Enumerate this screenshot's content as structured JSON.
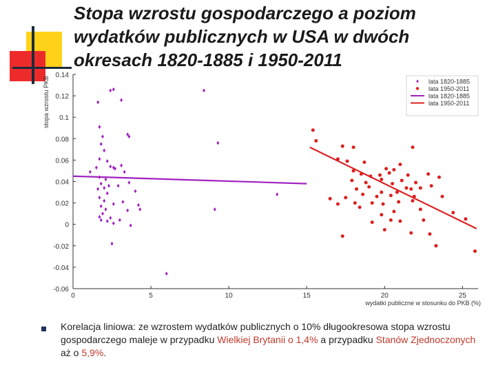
{
  "slide": {
    "title": "Stopa wzrostu gospodarczego a poziom wydatków publicznych w USA w dwóch okresach 1820-1885 i 1950-2011",
    "caption": {
      "part1": "Korelacja liniowa: ze wzrostem wydatków publicznych o 10% długookresowa stopa wzrostu gospodarczego maleje w przypadku ",
      "hl1": "Wielkiej Brytanii o 1,4%",
      "part2": " a przypadku ",
      "hl2": "Stanów Zjednoczonych",
      "part3": " aż o ",
      "hl3": "5,9%",
      "part4": "."
    }
  },
  "colors": {
    "series1": "#a020c0",
    "series2": "#dd1f1f",
    "axis": "#333333",
    "deco_yellow": "#ffd21a",
    "deco_red": "#ee2b2b"
  },
  "chart_data": {
    "type": "scatter",
    "xlabel": "wydatki publiczne w stosunku do PKB (%)",
    "ylabel": "stopa wzrostu PKB",
    "xlim": [
      0,
      26
    ],
    "ylim": [
      -0.06,
      0.14
    ],
    "xticks": [
      "0",
      "5",
      "10",
      "15",
      "20",
      "25"
    ],
    "yticks": [
      "-0.06",
      "-0.04",
      "-0.02",
      "0",
      "0.02",
      "0.04",
      "0.06",
      "0.08",
      "0.1",
      "0.12",
      "0.14"
    ],
    "legend_position": "top-right",
    "series": [
      {
        "name": "lata 1820-1885",
        "kind": "points",
        "points": [
          [
            2.4,
            0.125
          ],
          [
            2.6,
            0.126
          ],
          [
            1.6,
            0.114
          ],
          [
            3.1,
            0.116
          ],
          [
            8.4,
            0.125
          ],
          [
            1.7,
            0.091
          ],
          [
            1.9,
            0.082
          ],
          [
            1.8,
            0.075
          ],
          [
            2.0,
            0.069
          ],
          [
            1.7,
            0.061
          ],
          [
            2.2,
            0.059
          ],
          [
            2.7,
            0.052
          ],
          [
            3.1,
            0.055
          ],
          [
            3.5,
            0.084
          ],
          [
            3.6,
            0.082
          ],
          [
            9.3,
            0.076
          ],
          [
            1.1,
            0.049
          ],
          [
            1.5,
            0.053
          ],
          [
            2.4,
            0.054
          ],
          [
            2.6,
            0.053
          ],
          [
            3.3,
            0.049
          ],
          [
            1.7,
            0.044
          ],
          [
            2.1,
            0.042
          ],
          [
            1.8,
            0.038
          ],
          [
            2.3,
            0.036
          ],
          [
            2.0,
            0.034
          ],
          [
            1.6,
            0.033
          ],
          [
            2.9,
            0.036
          ],
          [
            3.6,
            0.039
          ],
          [
            4.0,
            0.031
          ],
          [
            2.2,
            0.029
          ],
          [
            1.7,
            0.025
          ],
          [
            2.0,
            0.022
          ],
          [
            2.6,
            0.019
          ],
          [
            3.2,
            0.021
          ],
          [
            4.2,
            0.018
          ],
          [
            1.8,
            0.017
          ],
          [
            2.1,
            0.014
          ],
          [
            3.5,
            0.013
          ],
          [
            1.9,
            0.01
          ],
          [
            1.7,
            0.007
          ],
          [
            2.4,
            0.006
          ],
          [
            2.2,
            0.003
          ],
          [
            3.0,
            0.004
          ],
          [
            4.3,
            0.014
          ],
          [
            1.8,
            0.004
          ],
          [
            2.6,
            0.001
          ],
          [
            3.7,
            -0.001
          ],
          [
            2.5,
            -0.018
          ],
          [
            6.0,
            -0.046
          ],
          [
            9.1,
            0.014
          ],
          [
            13.1,
            0.028
          ]
        ]
      },
      {
        "name": "lata 1950-2011",
        "kind": "points",
        "points": [
          [
            15.6,
            0.078
          ],
          [
            15.4,
            0.088
          ],
          [
            17.3,
            0.073
          ],
          [
            18.0,
            0.072
          ],
          [
            21.8,
            0.072
          ],
          [
            17.0,
            0.061
          ],
          [
            17.6,
            0.059
          ],
          [
            18.7,
            0.058
          ],
          [
            20.1,
            0.052
          ],
          [
            20.6,
            0.051
          ],
          [
            21.0,
            0.056
          ],
          [
            18.0,
            0.05
          ],
          [
            18.5,
            0.047
          ],
          [
            19.1,
            0.045
          ],
          [
            19.7,
            0.046
          ],
          [
            20.3,
            0.048
          ],
          [
            21.5,
            0.046
          ],
          [
            22.8,
            0.047
          ],
          [
            23.5,
            0.044
          ],
          [
            17.9,
            0.041
          ],
          [
            18.8,
            0.039
          ],
          [
            19.8,
            0.042
          ],
          [
            20.5,
            0.038
          ],
          [
            21.1,
            0.041
          ],
          [
            22.0,
            0.039
          ],
          [
            23.0,
            0.036
          ],
          [
            21.7,
            0.033
          ],
          [
            18.2,
            0.033
          ],
          [
            19.0,
            0.035
          ],
          [
            19.8,
            0.03
          ],
          [
            20.8,
            0.03
          ],
          [
            21.4,
            0.034
          ],
          [
            22.3,
            0.034
          ],
          [
            18.6,
            0.028
          ],
          [
            19.5,
            0.026
          ],
          [
            20.4,
            0.027
          ],
          [
            21.9,
            0.026
          ],
          [
            23.7,
            0.026
          ],
          [
            17.5,
            0.025
          ],
          [
            18.1,
            0.02
          ],
          [
            19.2,
            0.02
          ],
          [
            19.9,
            0.019
          ],
          [
            20.9,
            0.021
          ],
          [
            21.8,
            0.022
          ],
          [
            16.5,
            0.024
          ],
          [
            17.0,
            0.019
          ],
          [
            18.4,
            0.016
          ],
          [
            20.6,
            0.012
          ],
          [
            22.3,
            0.014
          ],
          [
            19.8,
            0.009
          ],
          [
            24.4,
            0.011
          ],
          [
            19.2,
            0.002
          ],
          [
            20.4,
            0.004
          ],
          [
            21.0,
            0.003
          ],
          [
            22.5,
            0.004
          ],
          [
            20.0,
            -0.005
          ],
          [
            21.7,
            -0.008
          ],
          [
            22.9,
            -0.009
          ],
          [
            25.2,
            0.005
          ],
          [
            17.3,
            -0.011
          ],
          [
            23.3,
            -0.02
          ],
          [
            25.8,
            -0.025
          ]
        ]
      },
      {
        "name": "lata 1820-1885",
        "kind": "line",
        "points": [
          [
            0.0,
            0.045
          ],
          [
            15.0,
            0.038
          ]
        ]
      },
      {
        "name": "lata 1950-2011",
        "kind": "line",
        "points": [
          [
            15.2,
            0.072
          ],
          [
            25.9,
            -0.004
          ]
        ]
      }
    ]
  }
}
